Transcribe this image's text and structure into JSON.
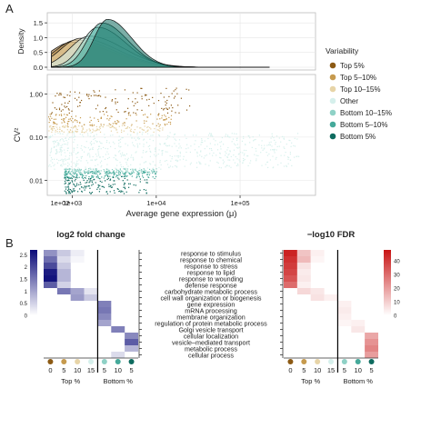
{
  "panel_labels": [
    "A",
    "B"
  ],
  "colors": {
    "Top 5%": "#8c5a14",
    "Top 5–10%": "#c69a4e",
    "Top 10–15%": "#e7d4a7",
    "Other": "#d6f0ec",
    "Bottom 10–15%": "#8fd1c6",
    "Bottom 5–10%": "#45a99a",
    "Bottom 5%": "#0e6b5f"
  },
  "legend": {
    "title": "Variability",
    "items": [
      "Top 5%",
      "Top 5–10%",
      "Top 10–15%",
      "Other",
      "Bottom 10–15%",
      "Bottom 5–10%",
      "Bottom 5%"
    ]
  },
  "chart_data": [
    {
      "type": "area",
      "panel": "A-top",
      "ylabel": "Density",
      "yticks": [
        "0.0",
        "0.5",
        "1.0",
        "1.5"
      ],
      "ylim": [
        0,
        1.75
      ],
      "xscale": "log10",
      "xlim": [
        2.7,
        5.9
      ],
      "series": [
        {
          "name": "Top 5%",
          "peak_x": 3.0,
          "peak_y": 0.85,
          "sd": 0.38
        },
        {
          "name": "Top 5–10%",
          "peak_x": 3.05,
          "peak_y": 0.92,
          "sd": 0.36
        },
        {
          "name": "Top 10–15%",
          "peak_x": 3.1,
          "peak_y": 0.98,
          "sd": 0.35
        },
        {
          "name": "Other",
          "peak_x": 3.2,
          "peak_y": 1.05,
          "sd": 0.33
        },
        {
          "name": "Bottom 10–15%",
          "peak_x": 3.3,
          "peak_y": 1.35,
          "sd": 0.27
        },
        {
          "name": "Bottom 5–10%",
          "peak_x": 3.35,
          "peak_y": 1.5,
          "sd": 0.25
        },
        {
          "name": "Bottom 5%",
          "peak_x": 3.42,
          "peak_y": 1.62,
          "sd": 0.23
        }
      ]
    },
    {
      "type": "scatter",
      "panel": "A-bottom",
      "xlabel": "Average gene expression (μ)",
      "ylabel": "CV²",
      "xscale": "log10",
      "yscale": "log10",
      "xlim": [
        2.7,
        5.9
      ],
      "ylim": [
        -2.35,
        0.45
      ],
      "xticks": [
        "1e+02",
        "1e+03",
        "1e+04",
        "1e+05"
      ],
      "yticks": [
        "1.00",
        "0.10",
        "0.01"
      ],
      "groups": [
        {
          "name": "Top 5%",
          "ymin": -0.45,
          "ymax": 0.15,
          "xmin": 2.55,
          "xmax": 4.4
        },
        {
          "name": "Top 5–10%",
          "ymin": -0.75,
          "ymax": -0.45,
          "xmin": 2.55,
          "xmax": 4.2
        },
        {
          "name": "Top 10–15%",
          "ymin": -0.88,
          "ymax": -0.72,
          "xmin": 2.55,
          "xmax": 4.1
        },
        {
          "name": "Other",
          "ymin": -1.75,
          "ymax": -0.88,
          "xmin": 2.55,
          "xmax": 5.7
        },
        {
          "name": "Bottom 10–15%",
          "ymin": -1.83,
          "ymax": -1.72,
          "xmin": 2.9,
          "xmax": 4.0
        },
        {
          "name": "Bottom 5–10%",
          "ymin": -1.95,
          "ymax": -1.78,
          "xmin": 2.9,
          "xmax": 4.0
        },
        {
          "name": "Bottom 5%",
          "ymin": -2.3,
          "ymax": -1.9,
          "xmin": 2.9,
          "xmax": 3.9
        }
      ]
    },
    {
      "type": "heatmap",
      "panel": "B-left",
      "title": "log2 fold change",
      "columns": [
        "0",
        "5",
        "10",
        "15",
        "5",
        "10",
        "5"
      ],
      "colorbar_ticks": [
        "2.5",
        "2",
        "1.5",
        "1",
        "0.5",
        "0"
      ],
      "vmax": 2.7,
      "rows": [
        [
          1.2,
          0.6,
          0.2,
          0,
          0,
          0,
          0
        ],
        [
          1.6,
          0.4,
          0.1,
          0,
          0,
          0,
          0
        ],
        [
          2.0,
          0.6,
          0,
          0,
          0,
          0,
          0
        ],
        [
          2.5,
          0.8,
          0,
          0,
          0,
          0,
          0
        ],
        [
          2.6,
          0.8,
          0,
          0,
          0,
          0,
          0
        ],
        [
          1.8,
          0.5,
          0,
          0,
          0,
          0,
          0
        ],
        [
          0,
          1.5,
          1.0,
          0.3,
          0,
          0,
          0
        ],
        [
          0,
          0,
          1.1,
          0.6,
          0,
          0,
          0
        ],
        [
          0,
          0,
          0,
          0,
          1.4,
          0,
          0
        ],
        [
          0,
          0,
          0,
          0,
          1.5,
          0,
          0
        ],
        [
          0,
          0,
          0,
          0,
          1.3,
          0,
          0
        ],
        [
          0,
          0,
          0,
          0,
          1.0,
          0,
          0
        ],
        [
          0,
          0,
          0,
          0,
          0,
          1.4,
          0
        ],
        [
          0,
          0,
          0,
          0,
          0,
          0,
          1.3
        ],
        [
          0,
          0,
          0,
          0,
          0,
          0,
          1.8
        ],
        [
          0,
          0,
          0,
          0,
          0,
          0,
          0.8
        ],
        [
          0,
          0,
          0,
          0,
          0,
          0.4,
          0
        ]
      ]
    },
    {
      "type": "heatmap",
      "panel": "B-right",
      "title": "−log10 FDR",
      "columns": [
        "0",
        "5",
        "10",
        "15",
        "5",
        "10",
        "5"
      ],
      "colorbar_ticks": [
        "40",
        "30",
        "20",
        "10",
        "0"
      ],
      "vmax": 48,
      "rows": [
        [
          45,
          12,
          3,
          0,
          0,
          0,
          0
        ],
        [
          42,
          14,
          2,
          0,
          0,
          0,
          0
        ],
        [
          40,
          6,
          0,
          0,
          0,
          0,
          0
        ],
        [
          38,
          4,
          0,
          0,
          0,
          0,
          0
        ],
        [
          35,
          5,
          0,
          0,
          0,
          0,
          0
        ],
        [
          30,
          3,
          0,
          0,
          0,
          0,
          0
        ],
        [
          0,
          8,
          5,
          0,
          0,
          0,
          0
        ],
        [
          0,
          0,
          6,
          3,
          0,
          0,
          0
        ],
        [
          0,
          0,
          0,
          0,
          3,
          0,
          0
        ],
        [
          0,
          0,
          0,
          0,
          4,
          0,
          0
        ],
        [
          0,
          0,
          0,
          0,
          3,
          0,
          0
        ],
        [
          0,
          0,
          0,
          0,
          2,
          3,
          0
        ],
        [
          0,
          0,
          0,
          0,
          0,
          5,
          0
        ],
        [
          0,
          0,
          0,
          0,
          0,
          0,
          18
        ],
        [
          0,
          0,
          0,
          0,
          0,
          0,
          22
        ],
        [
          0,
          0,
          0,
          0,
          0,
          0,
          25
        ],
        [
          0,
          0,
          0,
          0,
          0,
          0,
          20
        ]
      ]
    }
  ],
  "heatmap_row_labels": [
    "response to stimulus",
    "response to chemical",
    "response to stress",
    "response to lipid",
    "response to wounding",
    "defense response",
    "carbohydrate metabolic process",
    "cell wall organization or biogenesis",
    "gene expression",
    "mRNA processing",
    "membrane organization",
    "regulation of protein metabolic process",
    "Golgi vesicle transport",
    "cellular localization",
    "vesicle–mediated transport",
    "metabolic process",
    "cellular process"
  ],
  "heatmap_group_labels": [
    "Top %",
    "Bottom %"
  ],
  "heatmap_column_dot_colors": [
    "Top 5%",
    "Top 5–10%",
    "Top 10–15%",
    "Other",
    "Bottom 10–15%",
    "Bottom 5–10%",
    "Bottom 5%"
  ]
}
